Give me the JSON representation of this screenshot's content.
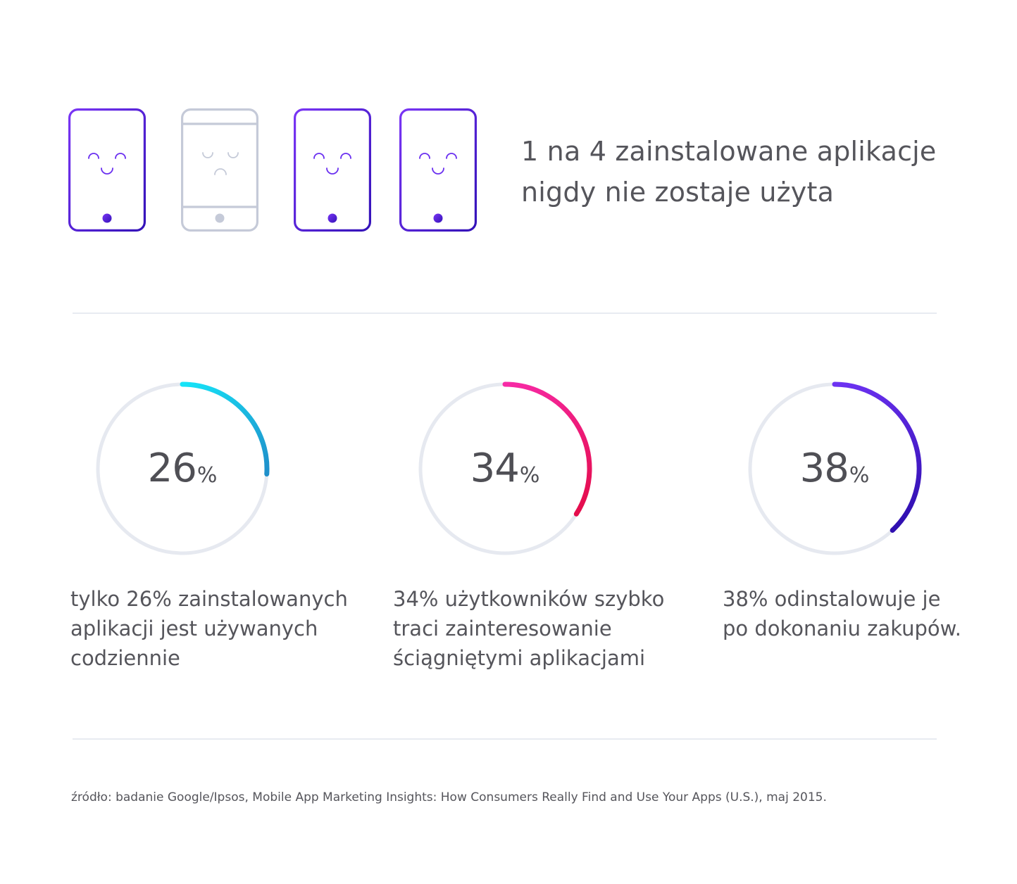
{
  "headline": {
    "line1": "1 na 4 zainstalowane aplikacje",
    "line2": "nigdy nie zostaje użyta"
  },
  "phones": [
    {
      "state": "happy",
      "icon": "happy-phone-icon",
      "color": "#6a2ff0"
    },
    {
      "state": "sad",
      "icon": "sad-phone-icon",
      "color": "#c5cad8"
    },
    {
      "state": "happy",
      "icon": "happy-phone-icon",
      "color": "#6a2ff0"
    },
    {
      "state": "happy",
      "icon": "happy-phone-icon",
      "color": "#6a2ff0"
    }
  ],
  "stats": [
    {
      "value": 26,
      "number": "26",
      "unit": "%",
      "text_lines": [
        "tylko 26% zainstalowanych",
        "aplikacji jest używanych",
        "codziennie"
      ],
      "gradient": [
        "#16e4f8",
        "#1f8fca"
      ]
    },
    {
      "value": 34,
      "number": "34",
      "unit": "%",
      "text_lines": [
        "34% użytkowników szybko",
        "traci zainteresowanie",
        "ściągniętymi aplikacjami"
      ],
      "gradient": [
        "#f72aa6",
        "#e40d4c"
      ]
    },
    {
      "value": 38,
      "number": "38",
      "unit": "%",
      "text_lines": [
        "38% odinstalowuje je",
        "po dokonaniu zakupów."
      ],
      "gradient": [
        "#6d32f2",
        "#2f0fb0"
      ]
    }
  ],
  "colors": {
    "track": "#e6e9f0",
    "divider": "#e8ebf1",
    "text": "#55555b",
    "accent_purple": "#6a2ff0",
    "inactive_gray": "#c5cad8"
  },
  "source": "źródło: badanie Google/Ipsos, Mobile App Marketing Insights: How Consumers Really Find and Use Your Apps (U.S.), maj 2015."
}
